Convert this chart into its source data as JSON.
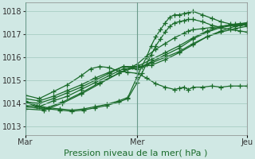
{
  "background_color": "#d0e8e4",
  "grid_color": "#a0c8bc",
  "line_color": "#1a6b2a",
  "marker": "+",
  "markersize": 4,
  "linewidth": 0.9,
  "ylabel_ticks": [
    1013,
    1014,
    1015,
    1016,
    1017,
    1018
  ],
  "ylim": [
    1012.6,
    1018.4
  ],
  "xlabel": "Pression niveau de la mer( hPa )",
  "xlabel_fontsize": 8,
  "tick_fontsize": 7,
  "xtick_labels": [
    "Mar",
    "Mer",
    "Jeu"
  ],
  "xtick_positions": [
    0,
    48,
    95
  ],
  "xlim": [
    0,
    95
  ],
  "series": [
    {
      "x": [
        0,
        6,
        12,
        18,
        24,
        30,
        36,
        42,
        48,
        54,
        60,
        66,
        72,
        78,
        84,
        90,
        95
      ],
      "y": [
        1013.9,
        1013.85,
        1014.1,
        1014.3,
        1014.6,
        1014.9,
        1015.2,
        1015.5,
        1015.5,
        1015.8,
        1016.1,
        1016.4,
        1016.8,
        1017.1,
        1017.3,
        1017.4,
        1017.45
      ]
    },
    {
      "x": [
        0,
        6,
        12,
        18,
        24,
        30,
        36,
        42,
        48,
        54,
        60,
        66,
        72,
        78,
        84,
        90,
        95
      ],
      "y": [
        1014.05,
        1014.0,
        1014.2,
        1014.45,
        1014.7,
        1015.0,
        1015.3,
        1015.6,
        1015.6,
        1015.9,
        1016.2,
        1016.5,
        1016.85,
        1017.15,
        1017.35,
        1017.45,
        1017.5
      ]
    },
    {
      "x": [
        0,
        6,
        12,
        18,
        24,
        30,
        36,
        42,
        48,
        54,
        60,
        66,
        72,
        78,
        84,
        90,
        95
      ],
      "y": [
        1014.2,
        1014.1,
        1014.3,
        1014.55,
        1014.8,
        1015.1,
        1015.35,
        1015.6,
        1015.5,
        1015.75,
        1016.0,
        1016.25,
        1016.6,
        1016.9,
        1017.1,
        1017.25,
        1017.35
      ]
    },
    {
      "x": [
        0,
        8,
        16,
        24,
        32,
        40,
        48,
        54,
        60,
        66,
        72,
        78,
        84,
        90,
        95
      ],
      "y": [
        1013.75,
        1013.7,
        1014.0,
        1014.4,
        1014.85,
        1015.3,
        1015.6,
        1015.65,
        1015.9,
        1016.2,
        1016.55,
        1016.9,
        1017.15,
        1017.35,
        1017.45
      ]
    },
    {
      "x": [
        0,
        6,
        12,
        18,
        24,
        28,
        32,
        36,
        40,
        44,
        48,
        52,
        56,
        60,
        64,
        66,
        68,
        70,
        72,
        76,
        80,
        84,
        88,
        92,
        95
      ],
      "y": [
        1014.35,
        1014.2,
        1014.5,
        1014.8,
        1015.2,
        1015.5,
        1015.6,
        1015.55,
        1015.4,
        1015.35,
        1015.3,
        1015.1,
        1014.85,
        1014.7,
        1014.6,
        1014.65,
        1014.7,
        1014.6,
        1014.7,
        1014.7,
        1014.75,
        1014.7,
        1014.75,
        1014.75,
        1014.75
      ]
    },
    {
      "x": [
        0,
        8,
        16,
        24,
        32,
        40,
        46,
        48,
        52,
        56,
        60,
        64,
        68,
        70,
        72,
        76,
        80,
        84,
        88,
        92,
        95
      ],
      "y": [
        1013.85,
        1013.75,
        1014.05,
        1014.45,
        1014.9,
        1015.3,
        1015.6,
        1015.7,
        1016.05,
        1016.35,
        1016.6,
        1016.85,
        1017.05,
        1017.15,
        1017.2,
        1017.25,
        1017.3,
        1017.35,
        1017.4,
        1017.45,
        1017.5
      ]
    },
    {
      "x": [
        0,
        5,
        10,
        15,
        20,
        25,
        30,
        35,
        40,
        44,
        48,
        50,
        52,
        54,
        56,
        58,
        60,
        62,
        64,
        66,
        68,
        70,
        72,
        76,
        80,
        84,
        88,
        92,
        95
      ],
      "y": [
        1014.1,
        1013.9,
        1013.8,
        1013.75,
        1013.7,
        1013.75,
        1013.85,
        1013.95,
        1014.1,
        1014.25,
        1015.15,
        1015.6,
        1016.0,
        1016.5,
        1016.9,
        1017.2,
        1017.5,
        1017.75,
        1017.85,
        1017.85,
        1017.9,
        1017.95,
        1018.0,
        1017.85,
        1017.7,
        1017.55,
        1017.45,
        1017.4,
        1017.4
      ]
    },
    {
      "x": [
        0,
        5,
        10,
        15,
        20,
        25,
        30,
        35,
        40,
        44,
        48,
        50,
        52,
        54,
        56,
        58,
        60,
        62,
        64,
        66,
        68,
        70,
        72,
        76,
        80,
        84,
        88,
        92,
        95
      ],
      "y": [
        1014.05,
        1013.85,
        1013.75,
        1013.7,
        1013.65,
        1013.7,
        1013.8,
        1013.9,
        1014.05,
        1014.2,
        1014.9,
        1015.3,
        1015.7,
        1016.1,
        1016.5,
        1016.8,
        1017.1,
        1017.35,
        1017.5,
        1017.55,
        1017.6,
        1017.65,
        1017.65,
        1017.55,
        1017.4,
        1017.3,
        1017.2,
        1017.15,
        1017.1
      ]
    }
  ],
  "vline_positions": [
    0,
    48,
    95
  ]
}
